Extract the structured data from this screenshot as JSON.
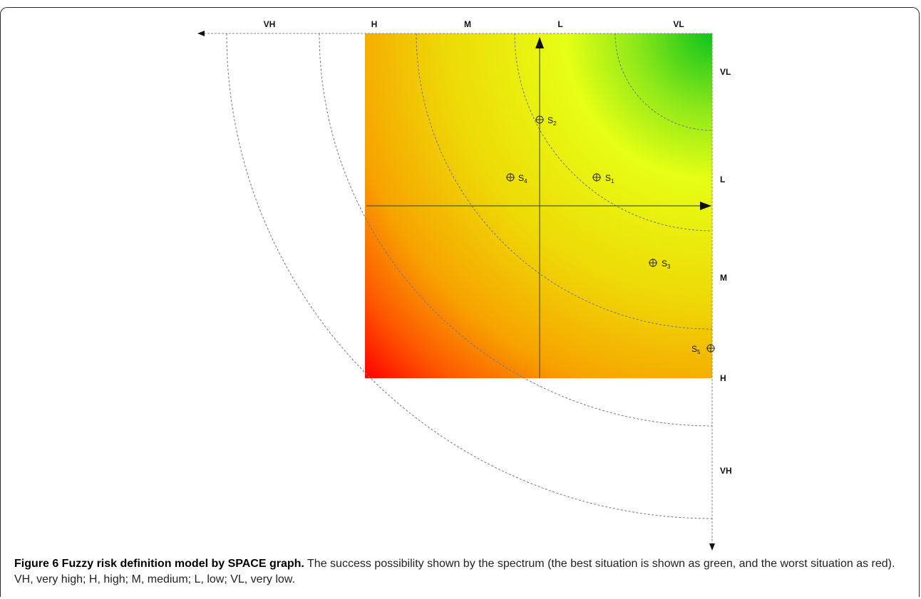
{
  "top_labels": [
    "VH",
    "H",
    "M",
    "L",
    "VL"
  ],
  "right_labels": [
    "VL",
    "L",
    "M",
    "H",
    "VH"
  ],
  "points": [
    {
      "label": "S",
      "sub": "2"
    },
    {
      "label": "S",
      "sub": "4"
    },
    {
      "label": "S",
      "sub": "1"
    },
    {
      "label": "S",
      "sub": "3"
    },
    {
      "label": "S",
      "sub": "5"
    }
  ],
  "colors": {
    "best": "#0bc21c",
    "mid": "#e6ff14",
    "worst": "#ff0000",
    "orange": "#f7a300"
  },
  "caption": {
    "title": "Figure 6 Fuzzy risk definition model by SPACE graph.",
    "text": " The success possibility shown by the spectrum (the best situation is shown as green, and the worst situation as red). VH, very high; H, high; M, medium; L, low; VL, very low."
  }
}
